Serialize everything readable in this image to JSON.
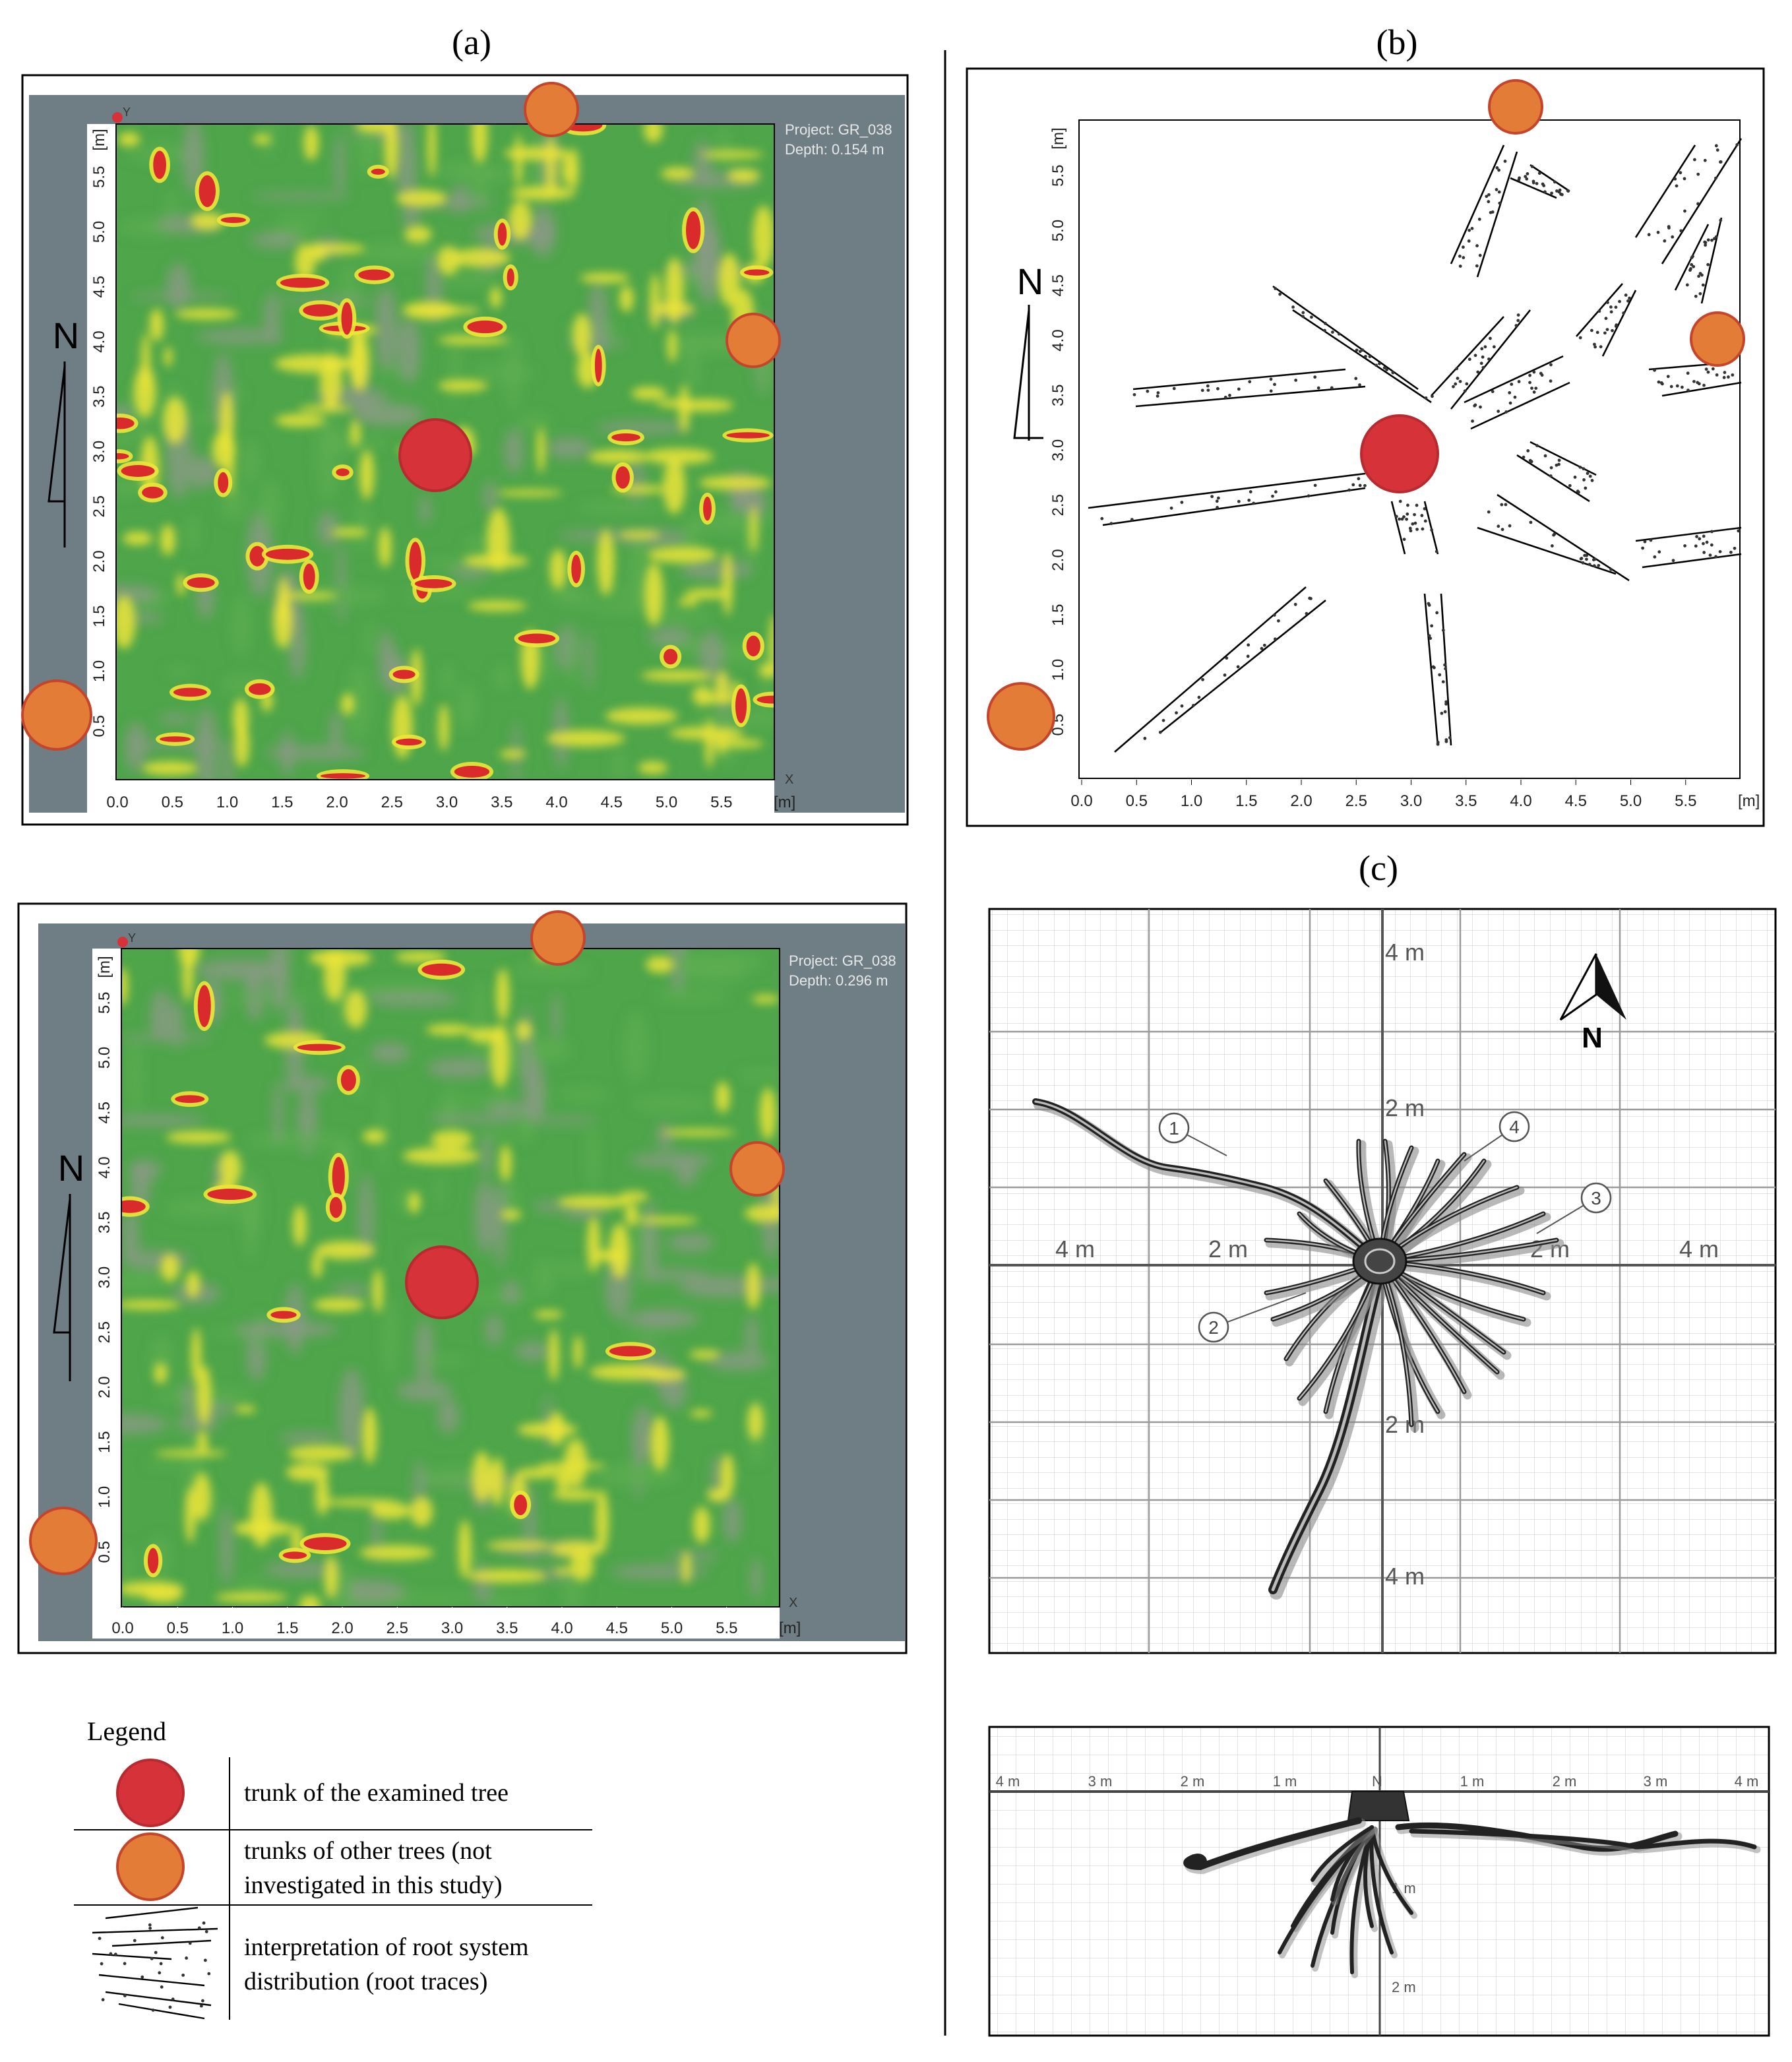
{
  "panel_labels": {
    "a": "(a)",
    "b": "(b)",
    "c": "(c)"
  },
  "gpr_top": {
    "project": "Project: GR_038",
    "depth": "Depth: 0.154 m",
    "x_ticks": [
      "0.0",
      "0.5",
      "1.0",
      "1.5",
      "2.0",
      "2.5",
      "3.0",
      "3.5",
      "4.0",
      "4.5",
      "5.0",
      "5.5"
    ],
    "y_ticks": [
      "0.5",
      "1.0",
      "1.5",
      "2.0",
      "2.5",
      "3.0",
      "3.5",
      "4.0",
      "4.5",
      "5.0",
      "5.5"
    ],
    "x_unit": "[m]",
    "y_unit": "[m]",
    "x_axis": "X",
    "y_axis": "Y",
    "north": "N"
  },
  "gpr_bottom": {
    "project": "Project: GR_038",
    "depth": "Depth: 0.296 m",
    "x_ticks": [
      "0.0",
      "0.5",
      "1.0",
      "1.5",
      "2.0",
      "2.5",
      "3.0",
      "3.5",
      "4.0",
      "4.5",
      "5.0",
      "5.5"
    ],
    "y_ticks": [
      "0.5",
      "1.0",
      "1.5",
      "2.0",
      "2.5",
      "3.0",
      "3.5",
      "4.0",
      "4.5",
      "5.0",
      "5.5"
    ],
    "x_unit": "[m]",
    "y_unit": "[m]",
    "x_axis": "X",
    "y_axis": "Y",
    "north": "N"
  },
  "interp": {
    "x_ticks": [
      "0.0",
      "0.5",
      "1.0",
      "1.5",
      "2.0",
      "2.5",
      "3.0",
      "3.5",
      "4.0",
      "4.5",
      "5.0",
      "5.5"
    ],
    "y_ticks": [
      "0.5",
      "1.0",
      "1.5",
      "2.0",
      "2.5",
      "3.0",
      "3.5",
      "4.0",
      "4.5",
      "5.0",
      "5.5"
    ],
    "x_unit": "[m]",
    "y_unit": "[m]",
    "north": "N"
  },
  "root_plan": {
    "labels": {
      "n4": "4 m",
      "n2": "2 m",
      "s2": "2 m",
      "s4": "4 m",
      "w4": "4 m",
      "w2": "2 m",
      "e2": "2 m",
      "e4": "4 m"
    },
    "north": "N",
    "callouts": [
      "1",
      "2",
      "3",
      "4"
    ]
  },
  "root_section": {
    "labels": [
      "4 m",
      "3 m",
      "2 m",
      "1 m",
      "N",
      "1 m",
      "2 m",
      "3 m",
      "4 m"
    ],
    "depth_labels": [
      "1 m",
      "2 m"
    ]
  },
  "legend": {
    "title": "Legend",
    "items": [
      {
        "text": "trunk of the examined tree",
        "color": "#d6323a"
      },
      {
        "line1": "trunks of other trees (not",
        "line2": "investigated in this study)",
        "color": "#e27c36"
      },
      {
        "line1": "interpretation of root system",
        "line2": "distribution (root traces)"
      }
    ]
  },
  "colors": {
    "trunk_examined": "#d6323a",
    "trunk_other": "#e27c36",
    "gpr_green": "#4ea54a",
    "gpr_yellow": "#ece53a",
    "gpr_red": "#d92b2b",
    "gpr_gray": "#6f7d85"
  }
}
